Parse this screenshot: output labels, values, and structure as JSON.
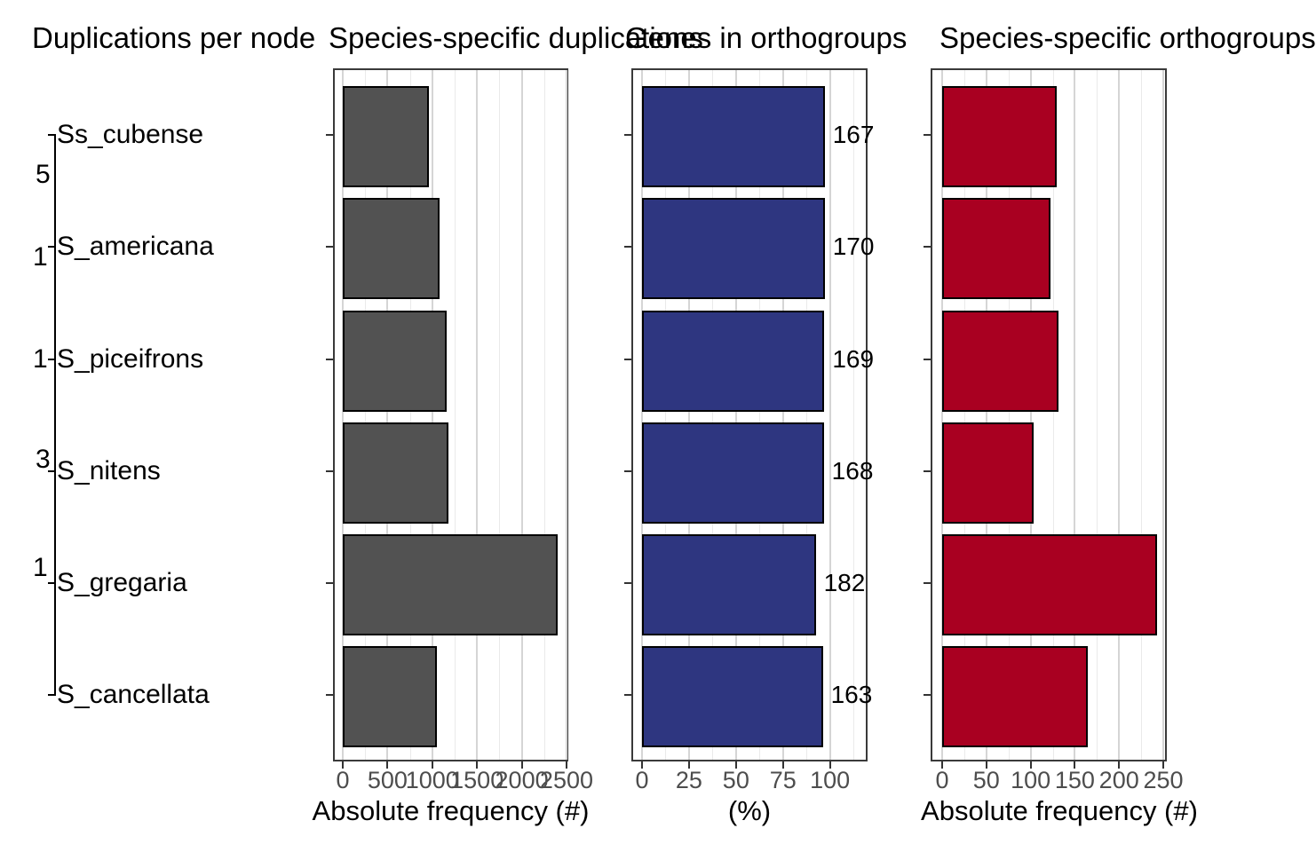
{
  "figure": {
    "background": "#ffffff",
    "panel_border_color": "#3a3a3a",
    "grid_major_color": "#d5d5d5",
    "grid_minor_color": "#eaeaea",
    "tick_color": "#333333",
    "tick_label_color": "#4d4d4d"
  },
  "tree": {
    "title": "Duplications per node",
    "species": [
      "Ss_cubense",
      "S_americana",
      "S_piceifrons",
      "S_nitens",
      "S_gregaria",
      "S_cancellata"
    ],
    "node_labels": [
      "5",
      "1",
      "1",
      "3",
      "1"
    ]
  },
  "chart_data": [
    {
      "type": "bar",
      "orientation": "horizontal",
      "title": "Species-specific duplications",
      "categories": [
        "Ss_cubense",
        "S_americana",
        "S_piceifrons",
        "S_nitens",
        "S_gregaria",
        "S_cancellata"
      ],
      "values": [
        960,
        1080,
        1160,
        1180,
        2400,
        1050
      ],
      "xlabel": "Absolute frequency (#)",
      "xticks": [
        0,
        500,
        1000,
        1500,
        2000,
        2500
      ],
      "xlim": [
        0,
        2520
      ],
      "grid": "major+minor",
      "legend": "none",
      "bar_color": "#525252",
      "bar_border_color": "#000000"
    },
    {
      "type": "bar",
      "orientation": "horizontal",
      "title": "Genes in orthogroups",
      "categories": [
        "Ss_cubense",
        "S_americana",
        "S_piceifrons",
        "S_nitens",
        "S_gregaria",
        "S_cancellata"
      ],
      "values": [
        97.2,
        97.2,
        97.0,
        96.7,
        92.4,
        96.2
      ],
      "bar_labels_visible": [
        "167",
        "170",
        "169",
        "168",
        "182",
        "163"
      ],
      "xlabel": "(%)",
      "xticks": [
        0,
        25,
        50,
        75,
        100
      ],
      "xlim": [
        0,
        120
      ],
      "grid": "major+minor",
      "legend": "none",
      "bar_color": "#2e3680",
      "bar_border_color": "#000000"
    },
    {
      "type": "bar",
      "orientation": "horizontal",
      "title": "Species-specific orthogroups",
      "categories": [
        "Ss_cubense",
        "S_americana",
        "S_piceifrons",
        "S_nitens",
        "S_gregaria",
        "S_cancellata"
      ],
      "values": [
        130,
        122,
        132,
        103,
        243,
        165
      ],
      "xlabel": "Absolute frequency (#)",
      "xticks": [
        0,
        50,
        100,
        150,
        200,
        250
      ],
      "xlim": [
        0,
        254
      ],
      "grid": "major+minor",
      "legend": "none",
      "bar_color": "#a90021",
      "bar_border_color": "#000000"
    }
  ]
}
